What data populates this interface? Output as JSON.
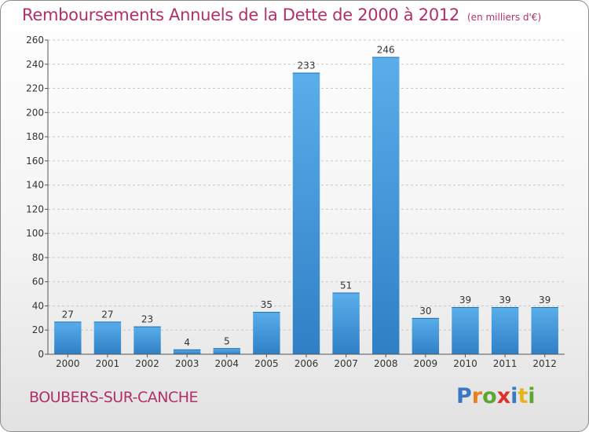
{
  "chart_data": {
    "type": "bar",
    "title": "Remboursements Annuels de la Dette de 2000 à 2012",
    "unit_note": "(en milliers d'€)",
    "categories": [
      "2000",
      "2001",
      "2002",
      "2003",
      "2004",
      "2005",
      "2006",
      "2007",
      "2008",
      "2009",
      "2010",
      "2011",
      "2012"
    ],
    "values": [
      27,
      27,
      23,
      4,
      5,
      35,
      233,
      51,
      246,
      30,
      39,
      39,
      39
    ],
    "ylim": [
      0,
      260
    ],
    "yticks": [
      0,
      20,
      40,
      60,
      80,
      100,
      120,
      140,
      160,
      180,
      200,
      220,
      240,
      260
    ],
    "grid": "horizontal-dashed",
    "bar_color": "#4a9ee0",
    "bar_color_dark": "#2f7fc6"
  },
  "commune": "BOUBERS-SUR-CANCHE",
  "logo": {
    "letters": [
      "P",
      "r",
      "o",
      "x",
      "i",
      "t",
      "i"
    ],
    "colors": [
      "#3b78c3",
      "#e8801c",
      "#5aa832",
      "#e0302c",
      "#3b78c3",
      "#e8b41c",
      "#5aa832"
    ]
  }
}
